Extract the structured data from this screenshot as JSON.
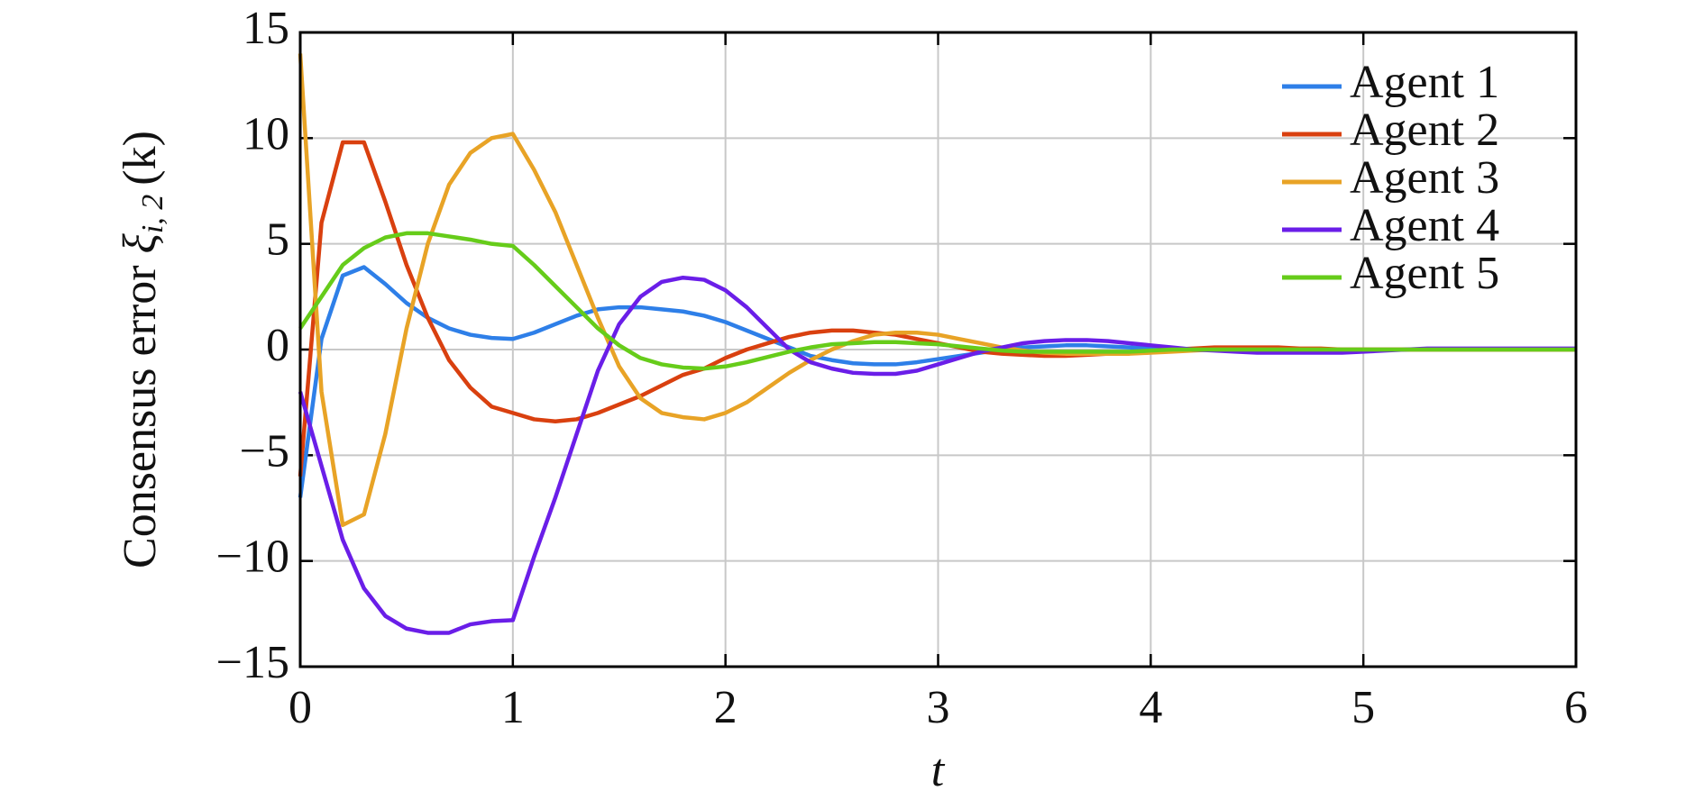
{
  "chart_data": {
    "type": "line",
    "xlabel": "t",
    "ylabel": {
      "text": "Consensus error",
      "symbol": "ξ",
      "subscript": "i, 2",
      "suffix": "(k)"
    },
    "x": [
      0,
      0.1,
      0.2,
      0.3,
      0.4,
      0.5,
      0.6,
      0.7,
      0.8,
      0.9,
      1,
      1.1,
      1.2,
      1.3,
      1.4,
      1.5,
      1.6,
      1.7,
      1.8,
      1.9,
      2,
      2.1,
      2.2,
      2.3,
      2.4,
      2.5,
      2.6,
      2.7,
      2.8,
      2.9,
      3,
      3.1,
      3.2,
      3.3,
      3.4,
      3.5,
      3.6,
      3.7,
      3.8,
      3.9,
      4,
      4.1,
      4.2,
      4.3,
      4.4,
      4.5,
      4.6,
      4.7,
      4.8,
      4.9,
      5,
      5.1,
      5.2,
      5.3,
      5.4,
      5.5,
      5.6,
      5.7,
      5.8,
      5.9,
      6
    ],
    "series": [
      {
        "name": "Agent 1",
        "color": "#2e7fe8",
        "values": [
          -7,
          0.5,
          3.5,
          3.9,
          3.1,
          2.2,
          1.5,
          1,
          0.7,
          0.55,
          0.5,
          0.8,
          1.2,
          1.6,
          1.9,
          2,
          2,
          1.9,
          1.8,
          1.6,
          1.3,
          0.9,
          0.5,
          0.1,
          -0.3,
          -0.5,
          -0.65,
          -0.7,
          -0.7,
          -0.6,
          -0.45,
          -0.3,
          -0.15,
          0,
          0.1,
          0.15,
          0.2,
          0.2,
          0.15,
          0.1,
          0.05,
          0,
          0,
          0,
          0,
          0,
          0,
          0,
          0,
          0,
          0,
          0,
          0,
          0,
          0,
          0,
          0,
          0,
          0,
          0,
          0
        ]
      },
      {
        "name": "Agent 2",
        "color": "#d9400f",
        "values": [
          -6,
          6,
          9.8,
          9.8,
          7,
          4,
          1.5,
          -0.5,
          -1.8,
          -2.7,
          -3,
          -3.3,
          -3.4,
          -3.3,
          -3,
          -2.6,
          -2.2,
          -1.7,
          -1.2,
          -0.9,
          -0.4,
          0,
          0.3,
          0.6,
          0.8,
          0.9,
          0.9,
          0.8,
          0.7,
          0.5,
          0.3,
          0.1,
          -0.1,
          -0.2,
          -0.25,
          -0.3,
          -0.3,
          -0.25,
          -0.2,
          -0.15,
          -0.1,
          0,
          0.05,
          0.1,
          0.1,
          0.1,
          0.1,
          0.05,
          0.05,
          0,
          0,
          0,
          0,
          0,
          0,
          0,
          0,
          0,
          0,
          0,
          0
        ]
      },
      {
        "name": "Agent 3",
        "color": "#e8a326",
        "values": [
          14,
          -2,
          -8.3,
          -7.8,
          -4,
          1,
          5,
          7.8,
          9.3,
          10,
          10.2,
          8.5,
          6.5,
          4,
          1.5,
          -0.8,
          -2.3,
          -3,
          -3.2,
          -3.3,
          -3,
          -2.5,
          -1.8,
          -1.1,
          -0.5,
          0,
          0.4,
          0.7,
          0.8,
          0.8,
          0.7,
          0.5,
          0.3,
          0.1,
          -0.05,
          -0.15,
          -0.2,
          -0.2,
          -0.2,
          -0.2,
          -0.15,
          -0.1,
          -0.05,
          0,
          0,
          0,
          0,
          0,
          0,
          0,
          0,
          0,
          0,
          0,
          0,
          0,
          0,
          0,
          0,
          0,
          0
        ]
      },
      {
        "name": "Agent 4",
        "color": "#6a1ee8",
        "values": [
          -2,
          -5.5,
          -9,
          -11.3,
          -12.6,
          -13.2,
          -13.4,
          -13.4,
          -13,
          -12.85,
          -12.8,
          -9.8,
          -7,
          -4,
          -1,
          1.2,
          2.5,
          3.2,
          3.4,
          3.3,
          2.8,
          2,
          1,
          0,
          -0.6,
          -0.9,
          -1.1,
          -1.15,
          -1.15,
          -1,
          -0.7,
          -0.4,
          -0.1,
          0.1,
          0.3,
          0.4,
          0.45,
          0.45,
          0.4,
          0.3,
          0.2,
          0.1,
          0,
          -0.05,
          -0.1,
          -0.15,
          -0.15,
          -0.15,
          -0.15,
          -0.15,
          -0.1,
          -0.05,
          0,
          0.05,
          0.05,
          0.05,
          0.05,
          0.05,
          0.05,
          0.05,
          0.05
        ]
      },
      {
        "name": "Agent 5",
        "color": "#66cc1a",
        "values": [
          1,
          2.5,
          4,
          4.8,
          5.3,
          5.5,
          5.5,
          5.35,
          5.2,
          5,
          4.9,
          4,
          3,
          2,
          1,
          0.2,
          -0.4,
          -0.7,
          -0.85,
          -0.9,
          -0.8,
          -0.6,
          -0.35,
          -0.1,
          0.1,
          0.25,
          0.3,
          0.35,
          0.35,
          0.3,
          0.25,
          0.15,
          0.05,
          -0.05,
          -0.1,
          -0.1,
          -0.1,
          -0.1,
          -0.1,
          -0.1,
          -0.05,
          0,
          0,
          0,
          0,
          0,
          0,
          0,
          0,
          0,
          0,
          0,
          0,
          0,
          0,
          0,
          0,
          0,
          0,
          0,
          0
        ]
      }
    ],
    "xlim": [
      0,
      6
    ],
    "xticks": [
      0,
      1,
      2,
      3,
      4,
      5,
      6
    ],
    "ylim": [
      -15,
      15
    ],
    "yticks": [
      {
        "value": -15,
        "label": "−15"
      },
      {
        "value": -10,
        "label": "−10"
      },
      {
        "value": -5,
        "label": "−5"
      },
      0,
      5,
      10,
      15
    ],
    "grid": true,
    "legend": "upper right"
  }
}
